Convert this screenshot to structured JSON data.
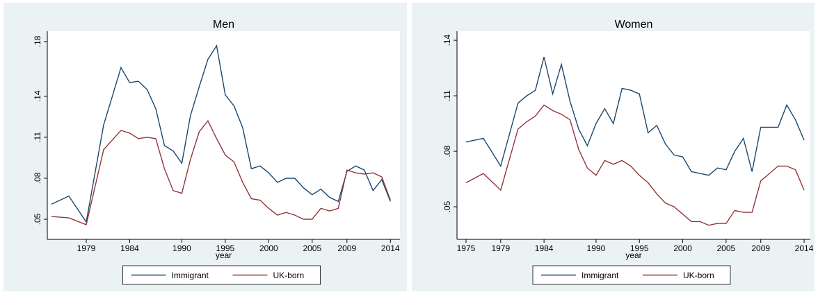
{
  "chart_data": [
    {
      "type": "line",
      "title": "Men",
      "x_label": "year",
      "x": [
        1975,
        1977,
        1979,
        1981,
        1982,
        1983,
        1984,
        1985,
        1986,
        1987,
        1988,
        1989,
        1990,
        1991,
        1992,
        1993,
        1994,
        1995,
        1996,
        1997,
        1998,
        1999,
        2000,
        2001,
        2002,
        2003,
        2004,
        2005,
        2006,
        2007,
        2008,
        2009,
        2010,
        2011,
        2012,
        2013,
        2014
      ],
      "series": [
        {
          "name": "Immigrant",
          "color": "#1a476f",
          "values": [
            0.061,
            0.067,
            0.048,
            0.119,
            0.14,
            0.161,
            0.15,
            0.151,
            0.145,
            0.131,
            0.104,
            0.1,
            0.091,
            0.126,
            0.147,
            0.167,
            0.177,
            0.141,
            0.133,
            0.117,
            0.087,
            0.089,
            0.084,
            0.077,
            0.08,
            0.08,
            0.073,
            0.068,
            0.072,
            0.066,
            0.063,
            0.085,
            0.089,
            0.086,
            0.071,
            0.079,
            0.063
          ]
        },
        {
          "name": "UK-born",
          "color": "#90353b",
          "values": [
            0.052,
            0.051,
            0.046,
            0.101,
            0.108,
            0.115,
            0.113,
            0.109,
            0.11,
            0.109,
            0.087,
            0.071,
            0.069,
            0.094,
            0.114,
            0.122,
            0.109,
            0.097,
            0.092,
            0.077,
            0.065,
            0.064,
            0.058,
            0.053,
            0.055,
            0.053,
            0.05,
            0.05,
            0.058,
            0.056,
            0.058,
            0.086,
            0.084,
            0.083,
            0.084,
            0.081,
            0.064
          ]
        }
      ],
      "xlim": [
        1974.52,
        2015.1
      ],
      "xticks": [
        1979,
        1984,
        1990,
        1995,
        2000,
        2005,
        2009,
        2014
      ],
      "ylim": [
        0.0353,
        0.1876
      ],
      "yticks": [
        {
          "value": 0.05,
          "label": ".05"
        },
        {
          "value": 0.08,
          "label": ".08"
        },
        {
          "value": 0.11,
          "label": ".11"
        },
        {
          "value": 0.14,
          "label": ".14"
        },
        {
          "value": 0.18,
          "label": ".18"
        }
      ],
      "legend": "bottom"
    },
    {
      "type": "line",
      "title": "Women",
      "x_label": "year",
      "x": [
        1975,
        1977,
        1979,
        1981,
        1982,
        1983,
        1984,
        1985,
        1986,
        1987,
        1988,
        1989,
        1990,
        1991,
        1992,
        1993,
        1994,
        1995,
        1996,
        1997,
        1998,
        1999,
        2000,
        2001,
        2002,
        2003,
        2004,
        2005,
        2006,
        2007,
        2008,
        2009,
        2010,
        2011,
        2012,
        2013,
        2014
      ],
      "series": [
        {
          "name": "Immigrant",
          "color": "#1a476f",
          "values": [
            0.085,
            0.087,
            0.072,
            0.106,
            0.11,
            0.113,
            0.131,
            0.111,
            0.127,
            0.107,
            0.092,
            0.083,
            0.095,
            0.103,
            0.095,
            0.114,
            0.113,
            0.111,
            0.09,
            0.094,
            0.084,
            0.078,
            0.077,
            0.069,
            0.068,
            0.067,
            0.071,
            0.07,
            0.08,
            0.087,
            0.069,
            0.093,
            0.093,
            0.093,
            0.105,
            0.097,
            0.086
          ]
        },
        {
          "name": "UK-born",
          "color": "#90353b",
          "values": [
            0.063,
            0.068,
            0.059,
            0.092,
            0.096,
            0.099,
            0.105,
            0.102,
            0.1,
            0.097,
            0.081,
            0.071,
            0.067,
            0.075,
            0.073,
            0.075,
            0.072,
            0.067,
            0.063,
            0.057,
            0.052,
            0.05,
            0.046,
            0.042,
            0.042,
            0.04,
            0.041,
            0.041,
            0.048,
            0.047,
            0.047,
            0.064,
            0.068,
            0.072,
            0.072,
            0.07,
            0.059
          ]
        }
      ],
      "xlim": [
        1973.96,
        2014.72
      ],
      "xticks": [
        1975,
        1979,
        1984,
        1990,
        1995,
        2000,
        2005,
        2009,
        2014
      ],
      "ylim": [
        0.0324,
        0.1449
      ],
      "yticks": [
        {
          "value": 0.05,
          "label": ".05"
        },
        {
          "value": 0.08,
          "label": ".08"
        },
        {
          "value": 0.11,
          "label": ".11"
        },
        {
          "value": 0.14,
          "label": ".14"
        }
      ],
      "legend": "bottom"
    }
  ]
}
